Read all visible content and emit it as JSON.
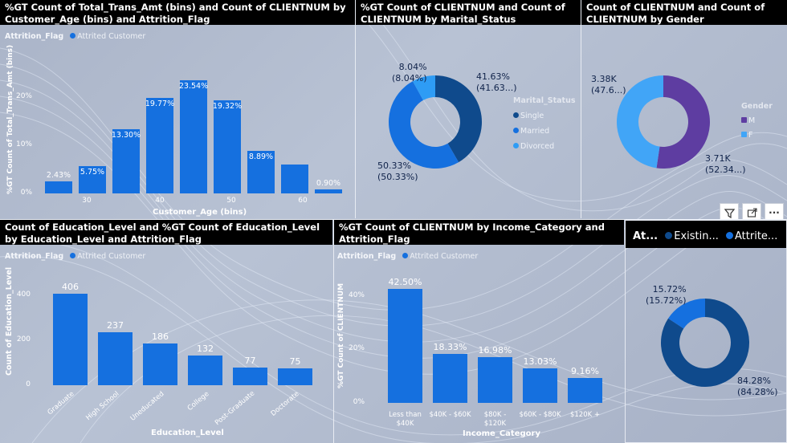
{
  "colors": {
    "bar": "#1570df",
    "single": "#0f4a8c",
    "married": "#1570df",
    "divorced": "#2e9cf5",
    "male": "#5e3da1",
    "female": "#41a5f7",
    "existing": "#0f4a8c",
    "attrited": "#1570df"
  },
  "panel1": {
    "title": "%GT Count of Total_Trans_Amt (bins) and Count of CLIENTNUM by Customer_Age (bins) and Attrition_Flag",
    "legend_title": "Attrition_Flag",
    "legend_item": "Attrited Customer",
    "y_axis_label": "%GT Count of Total_Trans_Amt (bins)",
    "x_axis_label": "Customer_Age (bins)",
    "y_ticks": [
      "20%",
      "10%",
      "0%"
    ],
    "x_ticks": [
      "30",
      "40",
      "50",
      "60"
    ],
    "chart_data": {
      "type": "bar",
      "values_percent": [
        2.43,
        5.75,
        13.3,
        19.77,
        23.54,
        19.32,
        8.89,
        5.95,
        0.9
      ],
      "labels": [
        "2.43%",
        "5.75%",
        "13.30%",
        "19.77%",
        "23.54%",
        "19.32%",
        "8.89%",
        "",
        "0.90%"
      ]
    }
  },
  "panel2": {
    "title": "%GT Count of CLIENTNUM and Count of CLIENTNUM by Marital_Status",
    "legend_title": "Marital_Status",
    "legend_items": [
      "Single",
      "Married",
      "Divorced"
    ],
    "chart_data": {
      "type": "pie",
      "categories": [
        "Single",
        "Married",
        "Divorced"
      ],
      "values_percent": [
        41.63,
        50.33,
        8.04
      ]
    },
    "labels": {
      "single_a": "41.63%",
      "single_b": "(41.63...)",
      "married_a": "50.33%",
      "married_b": "(50.33%)",
      "divorced_a": "8.04%",
      "divorced_b": "(8.04%)"
    }
  },
  "panel3": {
    "title": "Count of CLIENTNUM and Count of CLIENTNUM by Gender",
    "legend_title": "Gender",
    "legend_items": [
      "M",
      "F"
    ],
    "chart_data": {
      "type": "pie",
      "categories": [
        "M",
        "F"
      ],
      "values": [
        3710,
        3380
      ],
      "values_percent": [
        52.34,
        47.66
      ]
    },
    "labels": {
      "f_a": "3.38K",
      "f_b": "(47.6...)",
      "m_a": "3.71K",
      "m_b": "(52.34...)"
    }
  },
  "panel4": {
    "title": "Count of Education_Level and %GT Count of Education_Level by Education_Level and Attrition_Flag",
    "legend_title": "Attrition_Flag",
    "legend_item": "Attrited Customer",
    "y_axis_label": "Count of Education_Level",
    "x_axis_label": "Education_Level",
    "y_ticks": [
      "400",
      "200",
      "0"
    ],
    "chart_data": {
      "type": "bar",
      "categories": [
        "Graduate",
        "High School",
        "Uneducated",
        "College",
        "Post-Graduate",
        "Doctorate"
      ],
      "values": [
        406,
        237,
        186,
        132,
        77,
        75
      ]
    }
  },
  "panel5": {
    "title": "%GT Count of CLIENTNUM by Income_Category and Attrition_Flag",
    "legend_title": "Attrition_Flag",
    "legend_item": "Attrited Customer",
    "y_axis_label": "%GT Count of CLIENTNUM",
    "x_axis_label": "Income_Category",
    "y_ticks": [
      "40%",
      "20%",
      "0%"
    ],
    "chart_data": {
      "type": "bar",
      "categories": [
        "Less than $40K",
        "$40K - $60K",
        "$80K - $120K",
        "$60K - $80K",
        "$120K +"
      ],
      "values_percent": [
        42.5,
        18.33,
        16.98,
        13.03,
        9.16
      ],
      "labels": [
        "42.50%",
        "18.33%",
        "16.98%",
        "13.03%",
        "9.16%"
      ]
    },
    "cat_lines": [
      [
        "Less than",
        "$40K"
      ],
      [
        "$40K - $60K"
      ],
      [
        "$80K -",
        "$120K"
      ],
      [
        "$60K - $80K"
      ],
      [
        "$120K +"
      ]
    ]
  },
  "panel6": {
    "legend_title": "At...",
    "legend_items": [
      "Existin...",
      "Attrite..."
    ],
    "chart_data": {
      "type": "pie",
      "categories": [
        "Existing Customer",
        "Attrited Customer"
      ],
      "values_percent": [
        84.28,
        15.72
      ]
    },
    "labels": {
      "att_a": "15.72%",
      "att_b": "(15.72%)",
      "ex_a": "84.28%",
      "ex_b": "(84.28%)"
    }
  },
  "toolbar": {
    "filter_icon": "filter-icon",
    "focus_icon": "focus-mode-icon",
    "more_label": "···"
  }
}
